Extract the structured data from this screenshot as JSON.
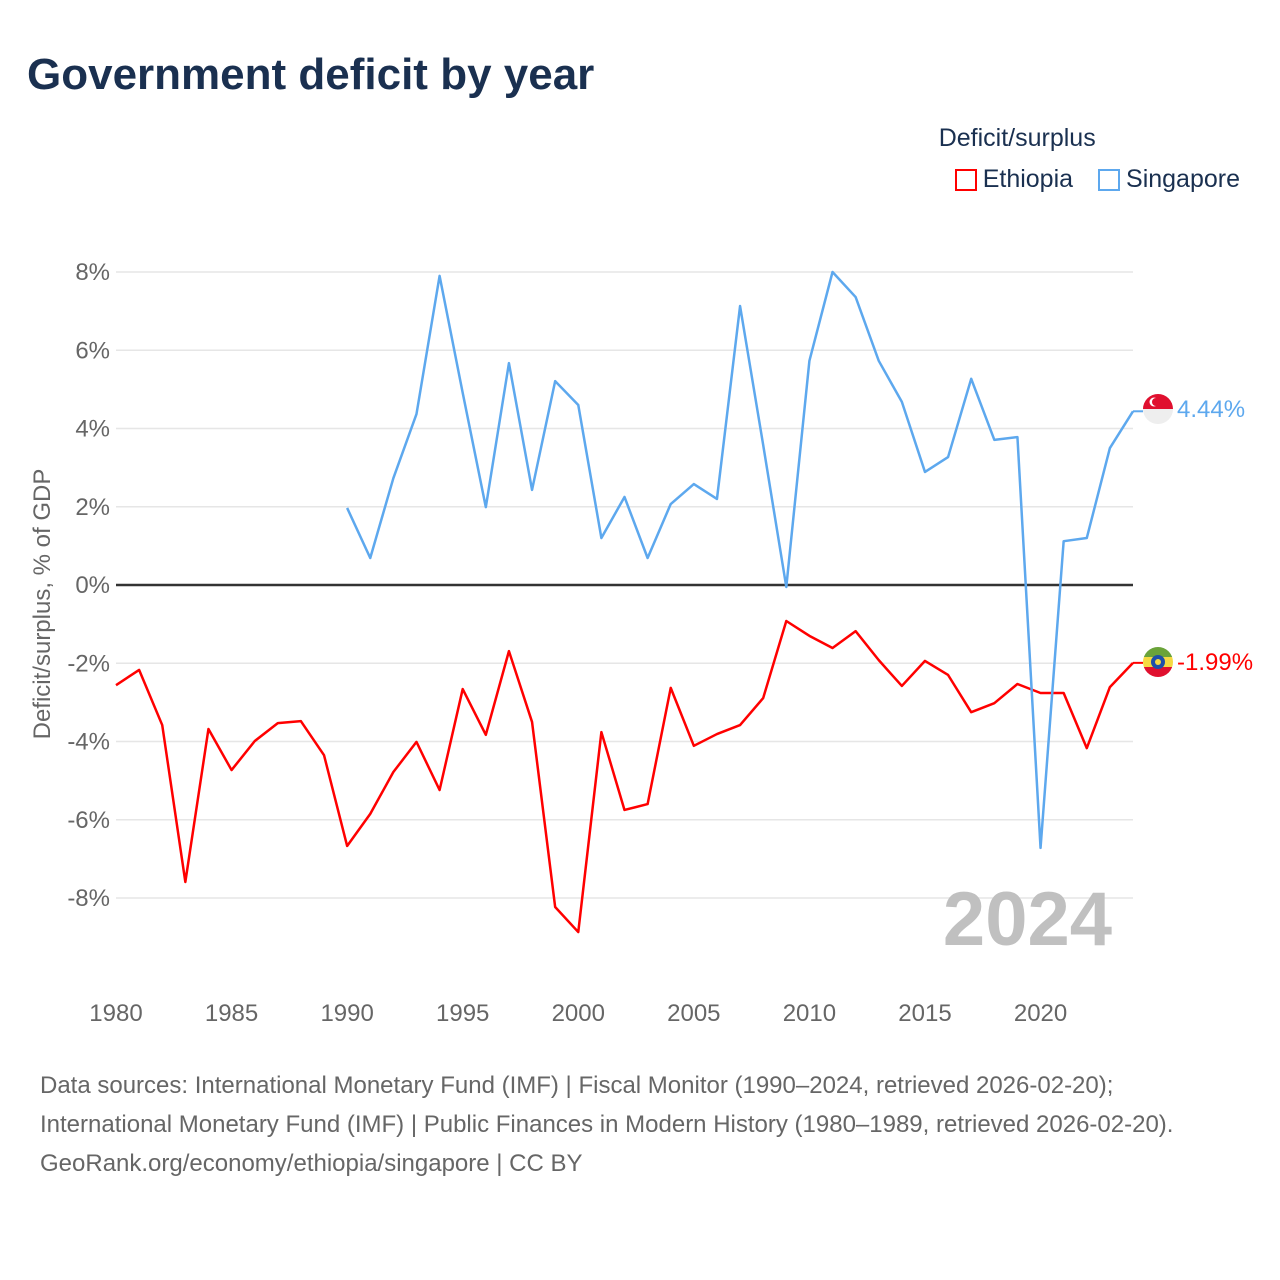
{
  "chart_data": {
    "type": "line",
    "title": "Government deficit by year",
    "ylabel": "Deficit/surplus, % of GDP",
    "xlabel": "",
    "legend_title": "Deficit/surplus",
    "legend_position": "top-right",
    "ylim": [
      -10.5,
      8
    ],
    "xlim": [
      1980,
      2024
    ],
    "yticks": [
      8,
      6,
      4,
      2,
      0,
      -2,
      -4,
      -6,
      -8
    ],
    "ytick_labels": [
      "8%",
      "6%",
      "4%",
      "2%",
      "0%",
      "-2%",
      "-4%",
      "-6%",
      "-8%"
    ],
    "xticks": [
      1980,
      1985,
      1990,
      1995,
      2000,
      2005,
      2010,
      2015,
      2020
    ],
    "xtick_labels": [
      "1980",
      "1985",
      "1990",
      "1995",
      "2000",
      "2005",
      "2010",
      "2015",
      "2020"
    ],
    "year_watermark": "2024",
    "series": [
      {
        "name": "Ethiopia",
        "color": "#ff0000",
        "end_label": "-1.99%",
        "start_year": 1980,
        "values": [
          -2.56,
          -2.17,
          -3.58,
          -7.59,
          -3.68,
          -4.73,
          -3.99,
          -3.53,
          -3.48,
          -4.35,
          -6.67,
          -5.85,
          -4.78,
          -4.01,
          -5.24,
          -2.66,
          -3.83,
          -1.69,
          -3.5,
          -8.23,
          -8.87,
          -3.76,
          -5.75,
          -5.6,
          -2.63,
          -4.11,
          -3.81,
          -3.58,
          -2.89,
          -0.92,
          -1.3,
          -1.61,
          -1.18,
          -1.92,
          -2.58,
          -1.94,
          -2.3,
          -3.25,
          -3.02,
          -2.53,
          -2.76,
          -2.76,
          -4.17,
          -2.61,
          -1.99
        ]
      },
      {
        "name": "Singapore",
        "color": "#5da8ee",
        "end_label": "4.44%",
        "start_year": 1990,
        "values": [
          1.97,
          0.69,
          2.73,
          4.37,
          7.9,
          4.91,
          1.99,
          5.67,
          2.43,
          5.21,
          4.6,
          1.2,
          2.25,
          0.69,
          2.07,
          2.58,
          2.2,
          7.13,
          3.58,
          -0.05,
          5.73,
          8.0,
          7.36,
          5.73,
          4.68,
          2.89,
          3.27,
          5.27,
          3.71,
          3.78,
          -6.72,
          1.12,
          1.2,
          3.5,
          4.44
        ]
      }
    ]
  },
  "footer": {
    "sources": "Data sources: International Monetary Fund (IMF) | Fiscal Monitor (1990–2024, retrieved 2026-02-20); International Monetary Fund (IMF) | Public Finances in Modern History (1980–1989, retrieved 2026-02-20).",
    "credit": "GeoRank.org/economy/ethiopia/singapore | CC BY"
  }
}
